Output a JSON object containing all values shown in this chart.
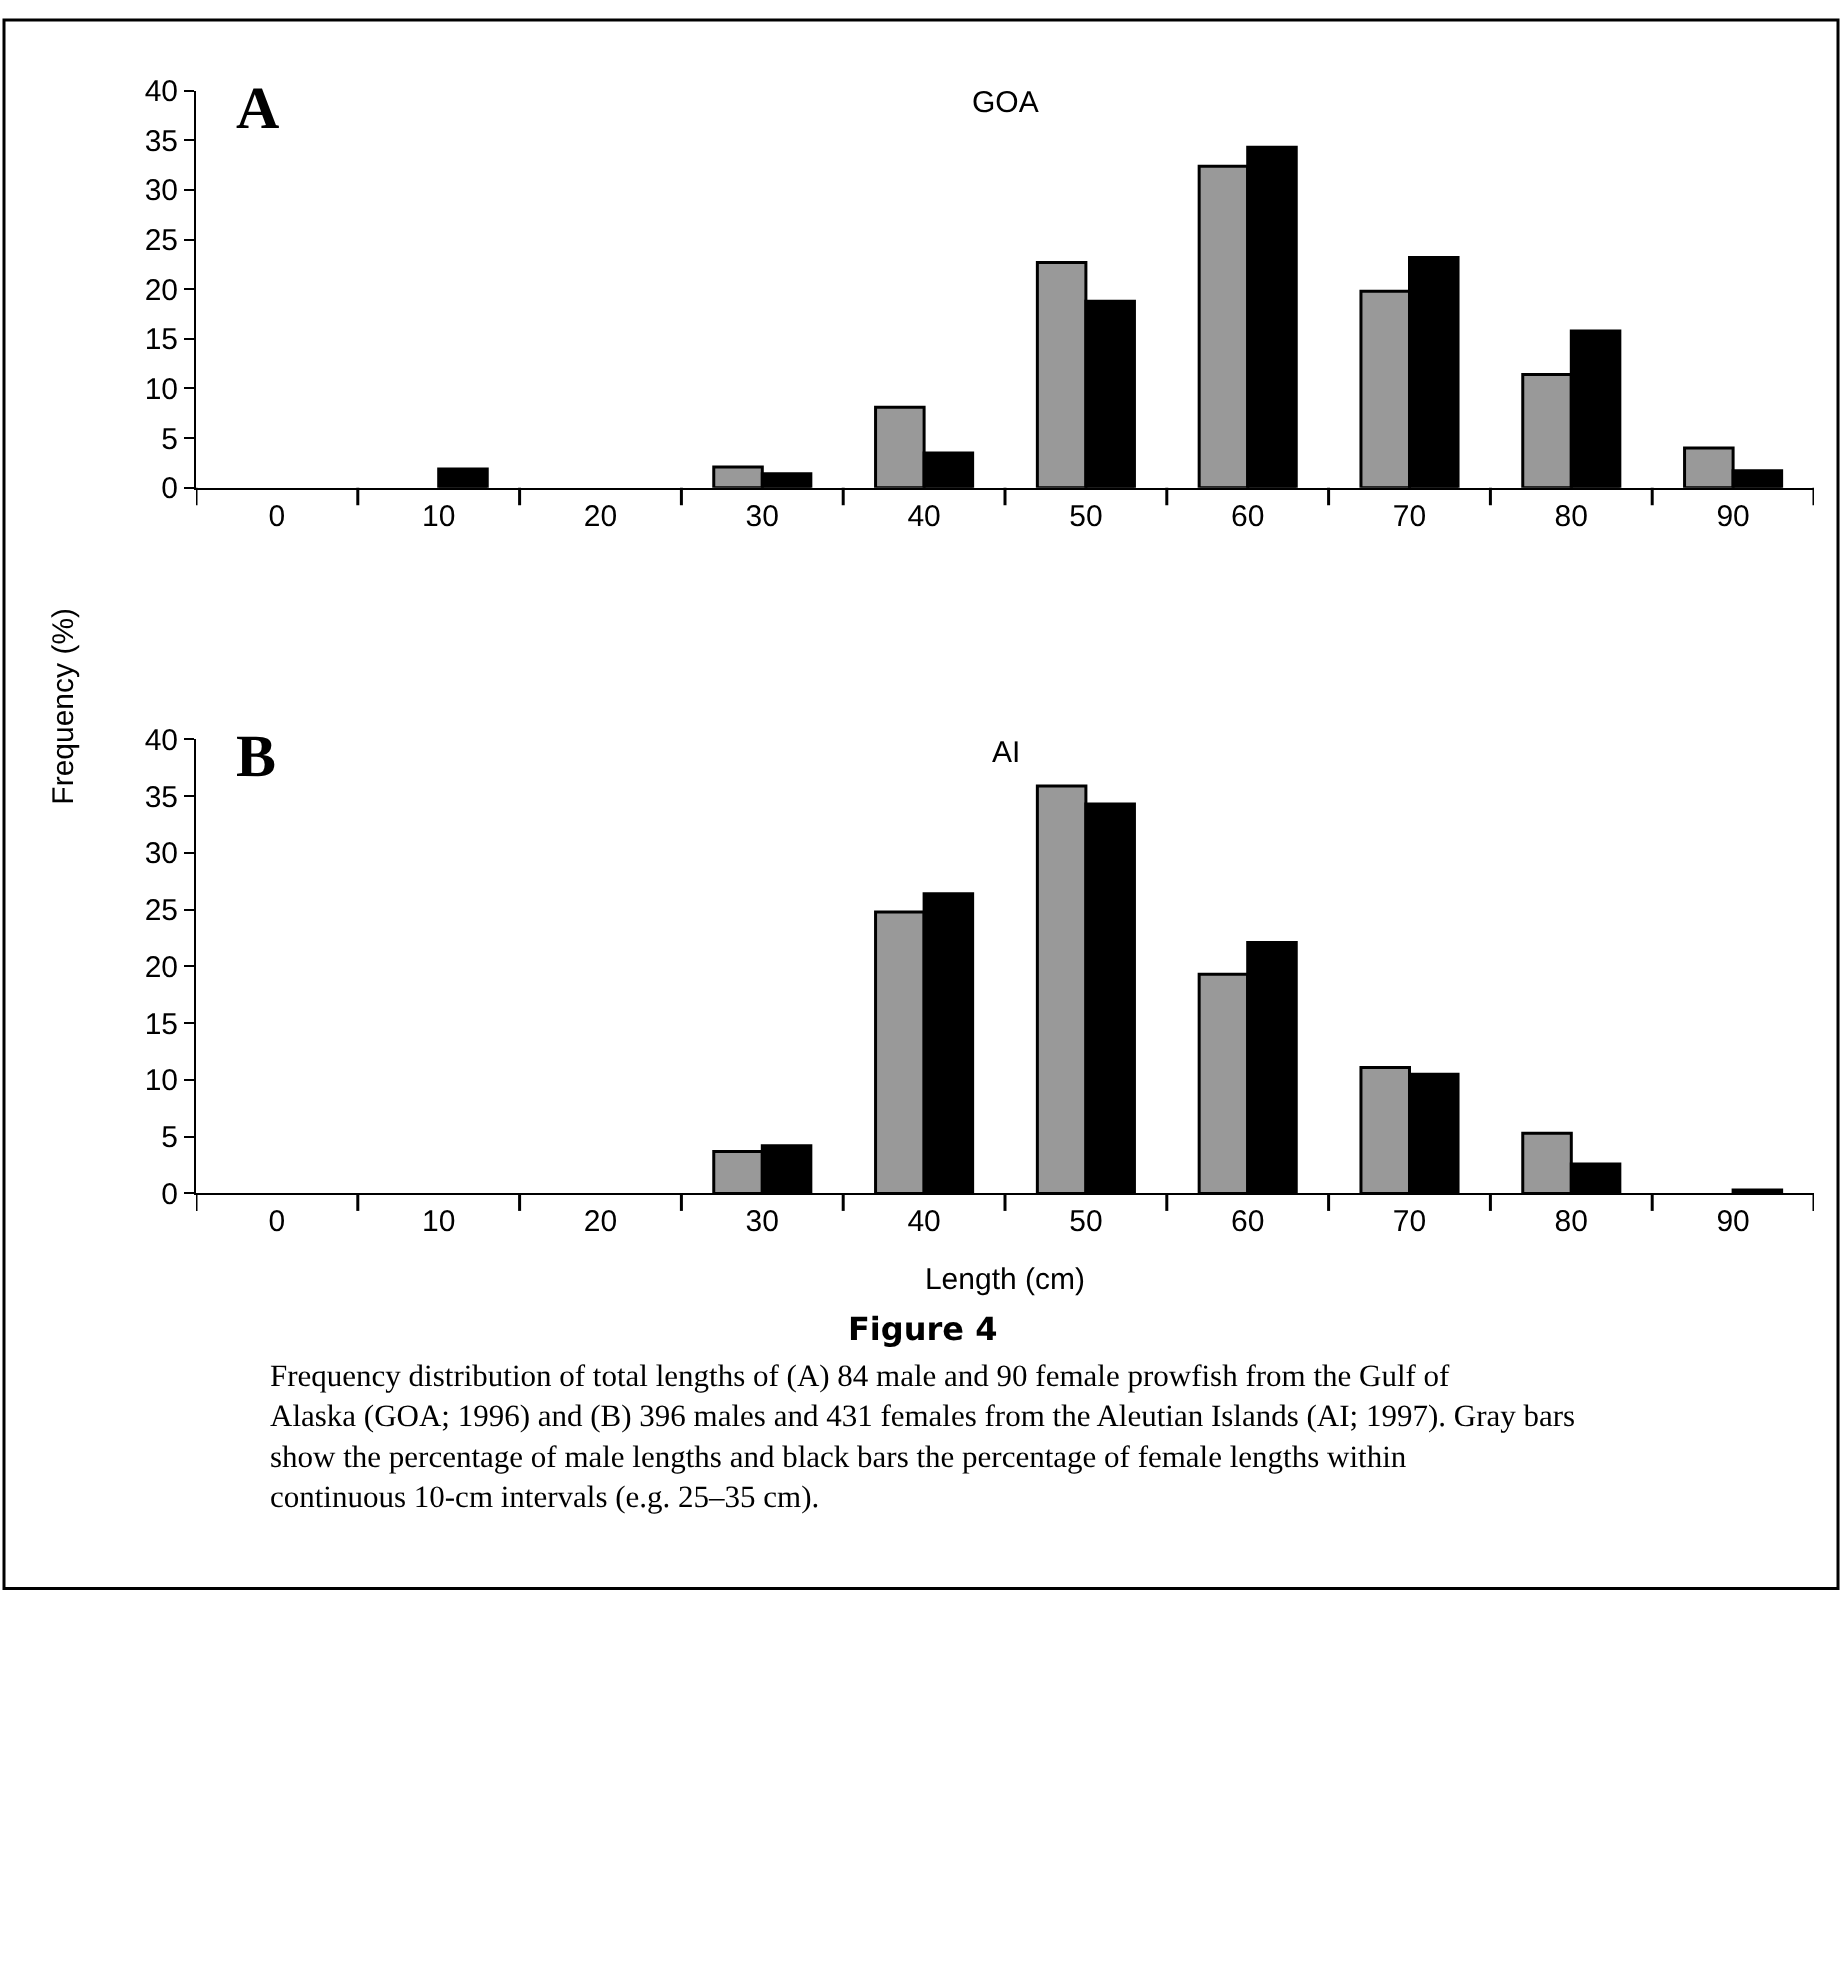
{
  "chart_data": [
    {
      "type": "bar",
      "title": "GOA",
      "ylabel": "Frequency (%)",
      "annotations": [
        "A"
      ],
      "categories": [
        "0",
        "10",
        "20",
        "30",
        "40",
        "50",
        "60",
        "70",
        "80",
        "90"
      ],
      "series": [
        {
          "color": "#999999",
          "values": [
            0,
            0,
            0,
            2.1,
            8.1,
            22.7,
            32.4,
            19.8,
            11.4,
            4.0
          ]
        },
        {
          "color": "#000000",
          "values": [
            0,
            1.9,
            0,
            1.4,
            3.5,
            18.8,
            34.3,
            23.2,
            15.8,
            1.7
          ]
        }
      ],
      "ylim": [
        0,
        40
      ],
      "yticks": [
        0,
        5,
        10,
        15,
        20,
        25,
        30,
        35,
        40
      ]
    },
    {
      "type": "bar",
      "title": "AI",
      "xlabel": "Length (cm)",
      "annotations": [
        "B",
        "Figure 4",
        "Frequency distribution of total lengths of (A) 84 male and 90 female prowfish from the Gulf of Alaska (GOA; 1996) and (B) 396 males and 431 females from the Aleutian Islands (AI; 1997). Gray bars show the percentage of male lengths and black bars the percentage of female lengths within continuous 10-cm intervals (e.g. 25–35 cm)."
      ],
      "categories": [
        "0",
        "10",
        "20",
        "30",
        "40",
        "50",
        "60",
        "70",
        "80",
        "90"
      ],
      "series": [
        {
          "color": "#999999",
          "values": [
            0,
            0,
            0,
            3.7,
            24.8,
            35.9,
            19.3,
            11.1,
            5.3,
            0
          ]
        },
        {
          "color": "#000000",
          "values": [
            0,
            0,
            0,
            4.2,
            26.4,
            34.3,
            22.1,
            10.5,
            2.6,
            0.3
          ]
        }
      ],
      "ylim": [
        0,
        40
      ],
      "yticks": [
        0,
        5,
        10,
        15,
        20,
        25,
        30,
        35,
        40
      ]
    }
  ]
}
